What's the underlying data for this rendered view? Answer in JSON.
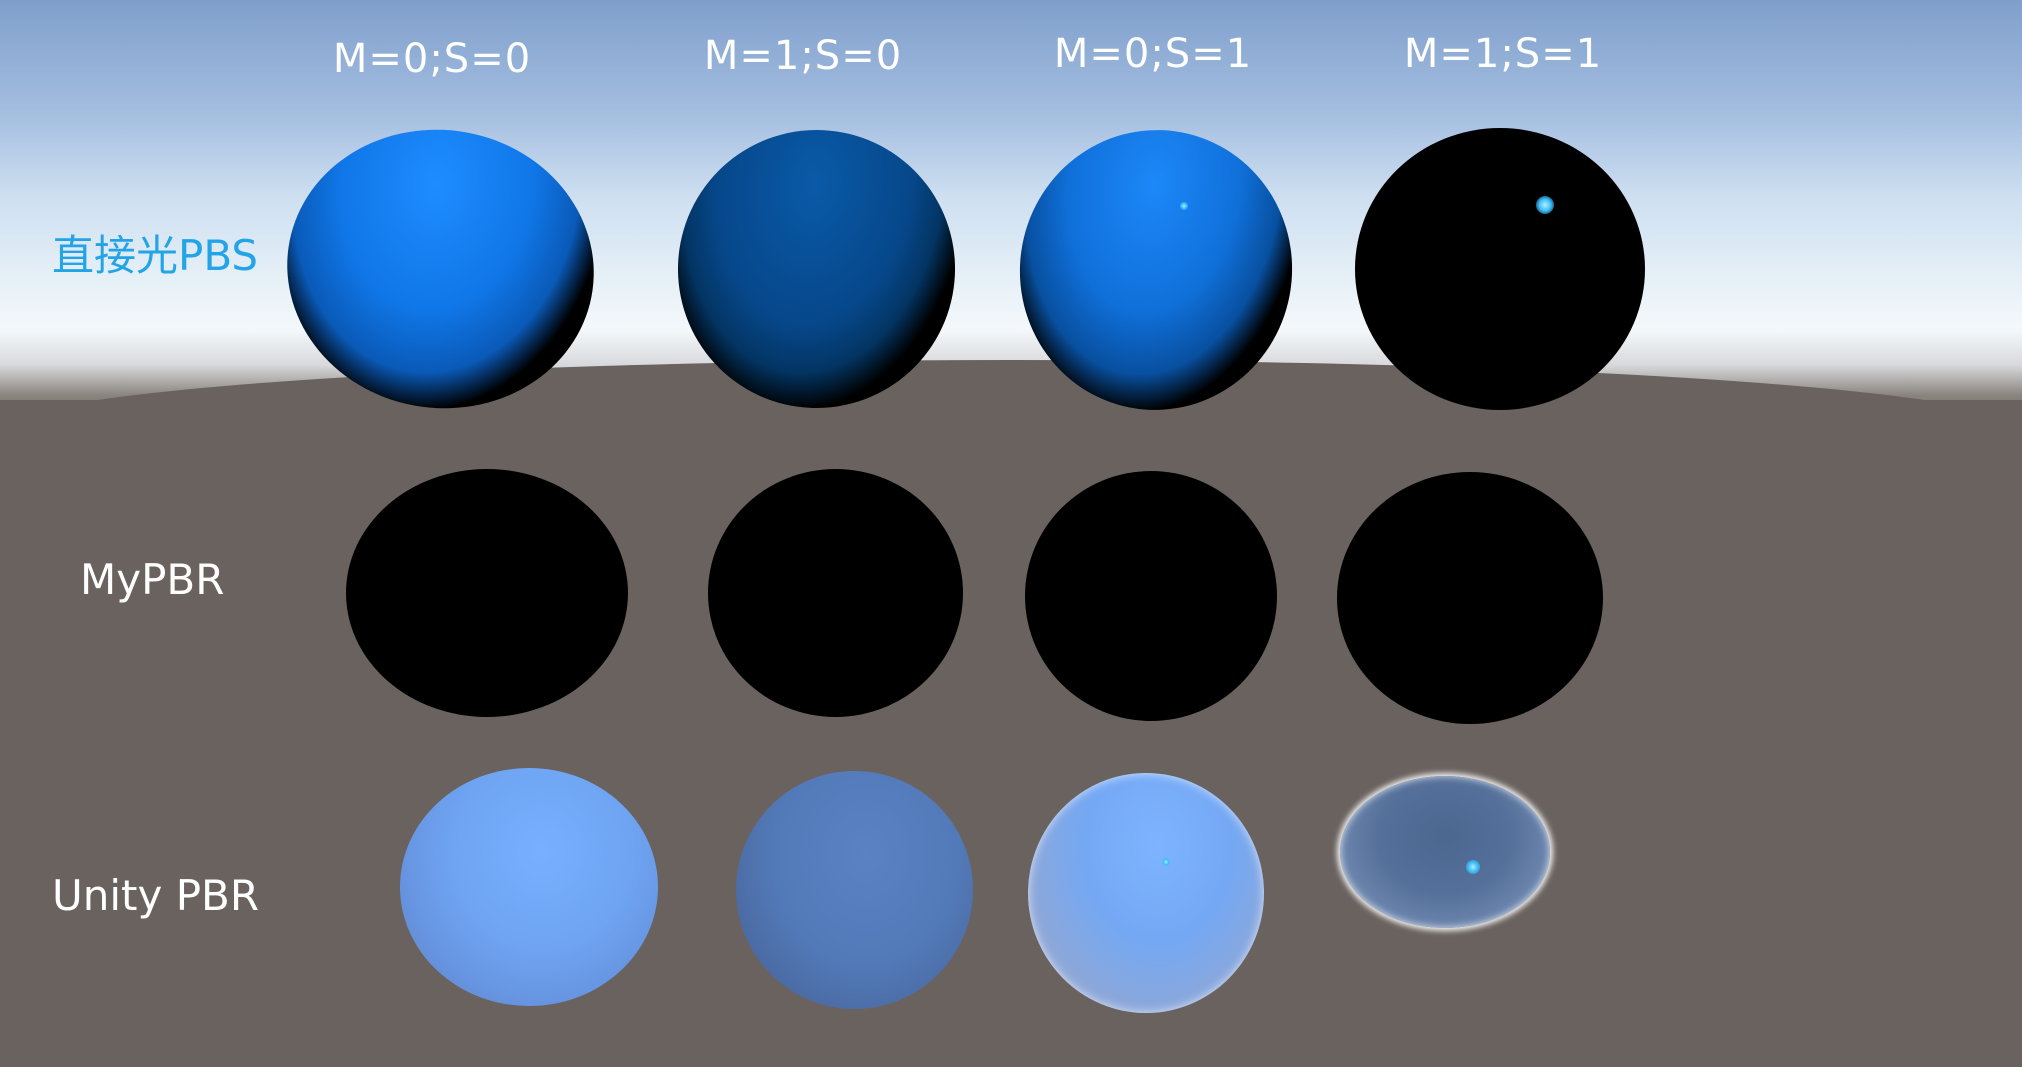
{
  "columns": [
    {
      "label": "M=0;S=0"
    },
    {
      "label": "M=1;S=0"
    },
    {
      "label": "M=0;S=1"
    },
    {
      "label": "M=1;S=1"
    }
  ],
  "rows": [
    {
      "label": "直接光PBS",
      "color": "#22a4e6"
    },
    {
      "label": "MyPBR",
      "color": "#ffffff"
    },
    {
      "label": "Unity PBR",
      "color": "#ffffff"
    }
  ],
  "colors": {
    "sky_top": "#7f9fcb",
    "horizon": "#f4f8fb",
    "ground": "#6a625e",
    "sphere_blue": "#1e8cff",
    "sphere_black": "#000000",
    "unity_blue": "#78b0ff"
  }
}
